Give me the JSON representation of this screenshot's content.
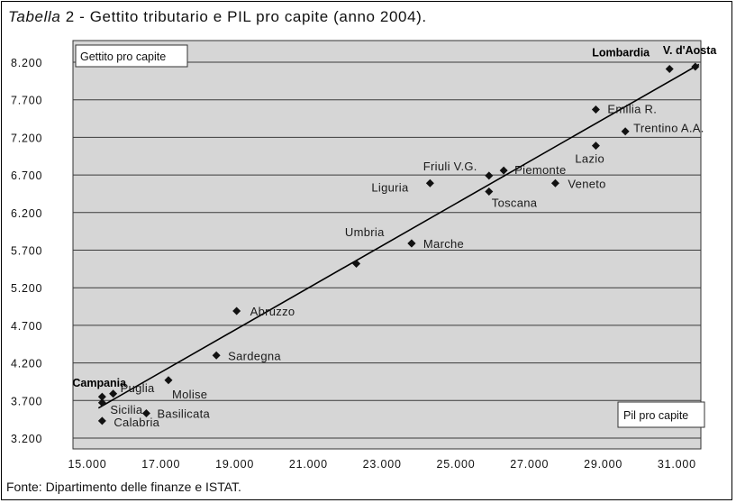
{
  "title": {
    "italic": "Tabella",
    "rest": " 2 - Gettito tributario e PIL pro capite (anno 2004)."
  },
  "source": "Fonte: Dipartimento delle finanze e ISTAT.",
  "chart_data": {
    "type": "scatter",
    "title": "Tabella 2 - Gettito tributario e PIL pro capite (anno 2004).",
    "xlabel": "Pil pro capite",
    "ylabel": "Gettito pro capite",
    "xlim": [
      15000,
      32000
    ],
    "ylim": [
      3200,
      8200
    ],
    "x_ticks": [
      15000,
      17000,
      19000,
      21000,
      23000,
      25000,
      27000,
      29000,
      31000
    ],
    "x_tick_labels": [
      "15.000",
      "17.000",
      "19.000",
      "21.000",
      "23.000",
      "25.000",
      "27.000",
      "29.000",
      "31.000"
    ],
    "y_ticks": [
      3200,
      3700,
      4200,
      4700,
      5200,
      5700,
      6200,
      6700,
      7200,
      7700,
      8200
    ],
    "y_tick_labels": [
      "3.200",
      "3.700",
      "4.200",
      "4.700",
      "5.200",
      "5.700",
      "6.200",
      "6.700",
      "7.200",
      "7.700",
      "8.200"
    ],
    "grid": "horizontal",
    "background": "#d6d6d6",
    "trendline": {
      "x": [
        15300,
        31600
      ],
      "y": [
        3600,
        8170
      ]
    },
    "points": [
      {
        "label": "Lombardia",
        "x": 30800,
        "y": 8110
      },
      {
        "label": "V. d'Aosta",
        "x": 31500,
        "y": 8140
      },
      {
        "label": "Emilia R.",
        "x": 28800,
        "y": 7570
      },
      {
        "label": "Trentino A.A.",
        "x": 29600,
        "y": 7280
      },
      {
        "label": "Lazio",
        "x": 28800,
        "y": 7090
      },
      {
        "label": "Friuli V.G.",
        "x": 25900,
        "y": 6690
      },
      {
        "label": "Piemonte",
        "x": 26300,
        "y": 6760
      },
      {
        "label": "Liguria",
        "x": 24300,
        "y": 6590
      },
      {
        "label": "Veneto",
        "x": 27700,
        "y": 6590
      },
      {
        "label": "Toscana",
        "x": 25900,
        "y": 6480
      },
      {
        "label": "Umbria",
        "x": 23800,
        "y": 5790
      },
      {
        "label": "Marche",
        "x": 23800,
        "y": 5790
      },
      {
        "label": "",
        "x": 22300,
        "y": 5520
      },
      {
        "label": "Abruzzo",
        "x": 19050,
        "y": 4890
      },
      {
        "label": "Sardegna",
        "x": 18500,
        "y": 4300
      },
      {
        "label": "Molise",
        "x": 17200,
        "y": 3970
      },
      {
        "label": "Puglia",
        "x": 15700,
        "y": 3790
      },
      {
        "label": "Campania",
        "x": 15400,
        "y": 3750
      },
      {
        "label": "Sicilia",
        "x": 15400,
        "y": 3670
      },
      {
        "label": "Basilicata",
        "x": 16600,
        "y": 3530
      },
      {
        "label": "Calabria",
        "x": 15400,
        "y": 3430
      }
    ]
  }
}
